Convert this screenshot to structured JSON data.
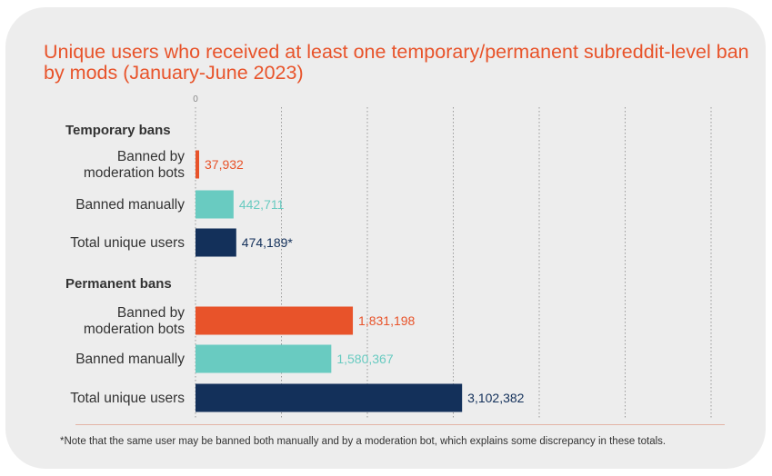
{
  "title": "Unique users who received at least one temporary/permanent subreddit-level ban by mods  (January-June 2023)",
  "footnote": "*Note that the same user may be banned both manually and by a moderation bot, which explains some discrepancy in these totals.",
  "colors": {
    "bots": "#e8532a",
    "manual": "#69cbc1",
    "total": "#13305a",
    "title": "#e8532a"
  },
  "chart_data": {
    "type": "bar",
    "orientation": "horizontal",
    "title": "Unique users who received at least one temporary/permanent subreddit-level ban by mods  (January-June 2023)",
    "xlim": [
      0,
      6000000
    ],
    "x_tick_labels": [
      "0"
    ],
    "groups": [
      {
        "label": "Temporary bans",
        "bars": [
          {
            "label": "Banned by moderation bots",
            "label_lines": [
              "Banned by",
              "moderation bots"
            ],
            "value": 37932,
            "value_label": "37,932",
            "series": "bots"
          },
          {
            "label": "Banned manually",
            "label_lines": [
              "Banned manually"
            ],
            "value": 442711,
            "value_label": "442,711",
            "series": "manual"
          },
          {
            "label": "Total unique users",
            "label_lines": [
              "Total unique users"
            ],
            "value": 474189,
            "value_label": "474,189*",
            "series": "total"
          }
        ]
      },
      {
        "label": "Permanent bans",
        "bars": [
          {
            "label": "Banned by moderation bots",
            "label_lines": [
              "Banned by",
              "moderation bots"
            ],
            "value": 1831198,
            "value_label": "1,831,198",
            "series": "bots"
          },
          {
            "label": "Banned manually",
            "label_lines": [
              "Banned manually"
            ],
            "value": 1580367,
            "value_label": "1,580,367",
            "series": "manual"
          },
          {
            "label": "Total unique users",
            "label_lines": [
              "Total unique users"
            ],
            "value": 3102382,
            "value_label": "3,102,382",
            "series": "total"
          }
        ]
      }
    ]
  }
}
